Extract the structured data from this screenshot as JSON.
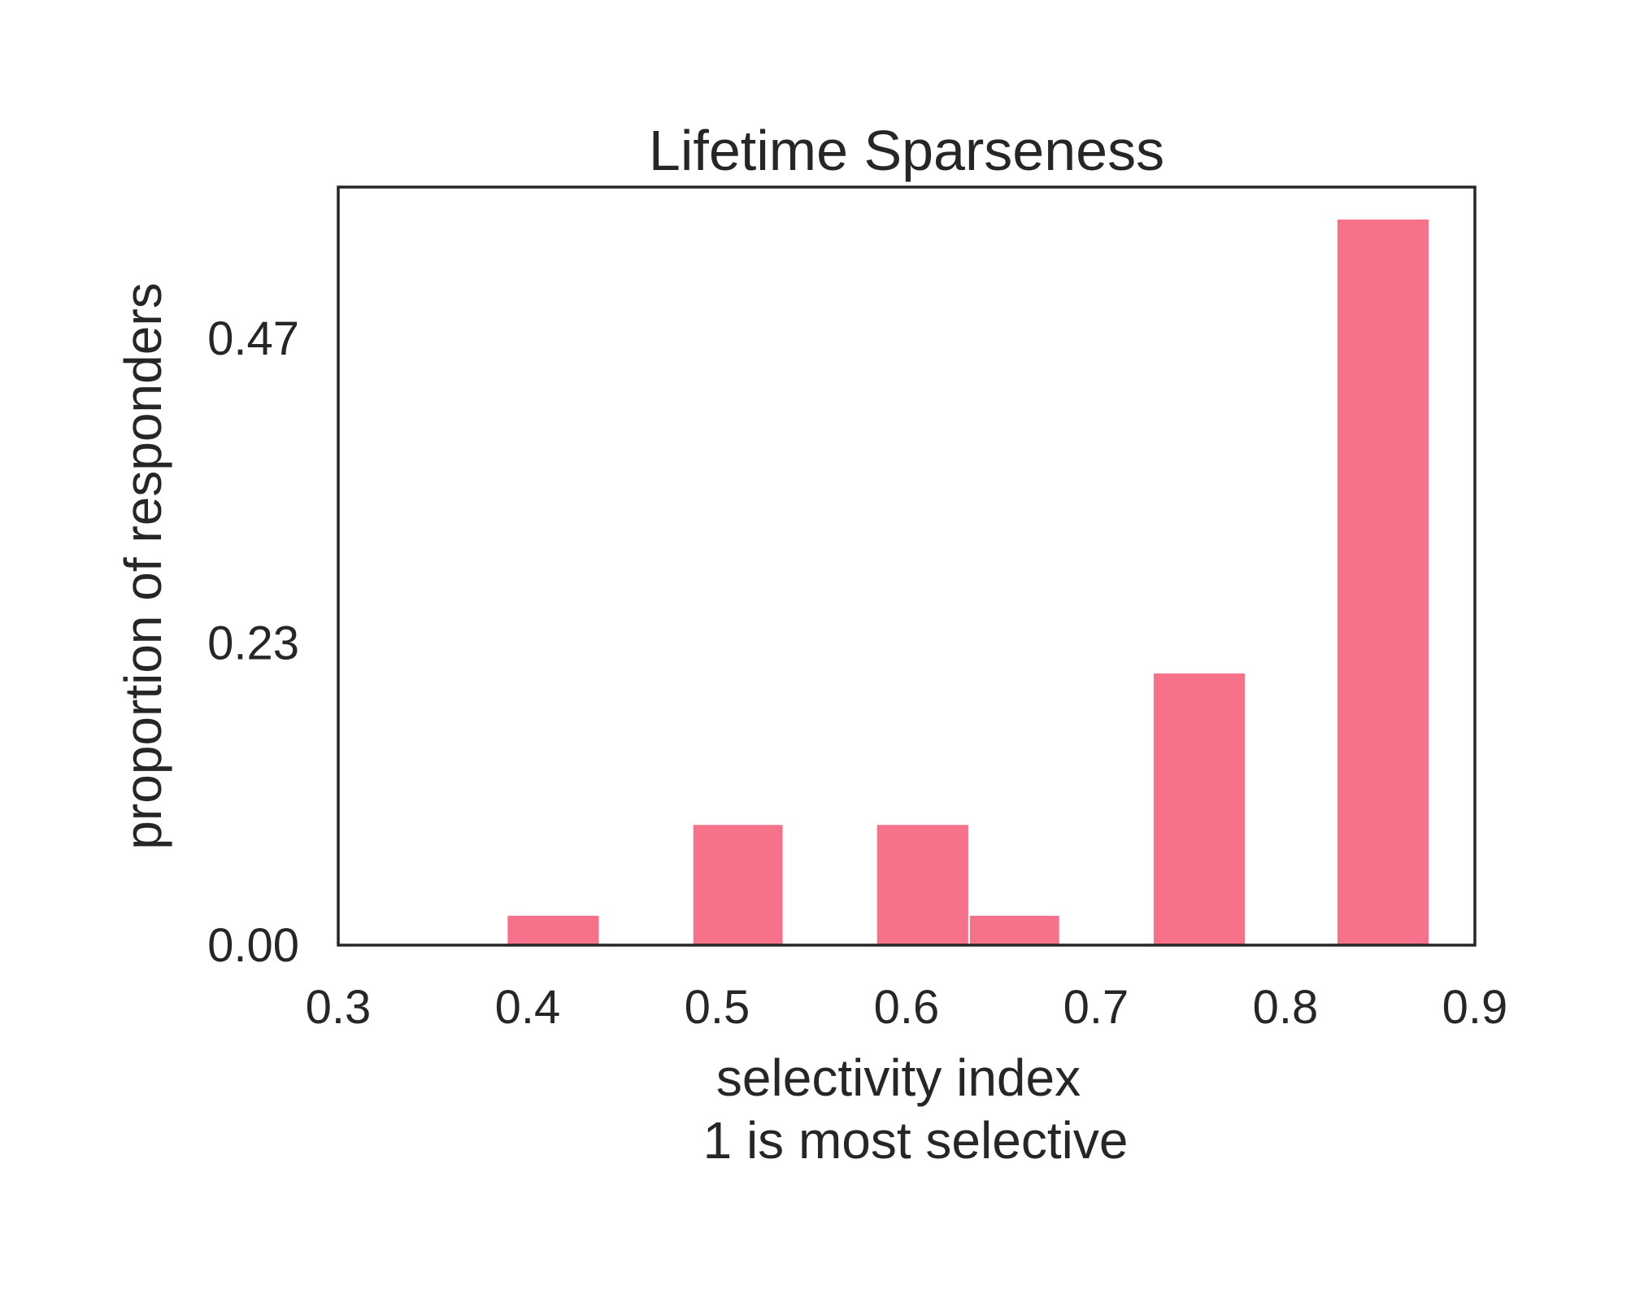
{
  "chart_data": {
    "type": "bar",
    "title": "Lifetime Sparseness",
    "xlabel": "selectivity index",
    "xlabel_line2": "1 is most selective",
    "ylabel": "proportion of responders",
    "xlim": [
      0.3,
      0.9
    ],
    "ylim": [
      0,
      0.587
    ],
    "xticks": [
      0.3,
      0.4,
      0.5,
      0.6,
      0.7,
      0.8,
      0.9
    ],
    "xtick_labels": [
      "0.3",
      "0.4",
      "0.5",
      "0.6",
      "0.7",
      "0.8",
      "0.9"
    ],
    "yticks": [
      0.0,
      0.234,
      0.47
    ],
    "ytick_labels": [
      "0.00",
      "0.23",
      "0.47"
    ],
    "grid": false,
    "bar_color": "#f6718a",
    "bins": [
      {
        "x0": 0.389,
        "x1": 0.438,
        "value": 0.0234
      },
      {
        "x0": 0.438,
        "x1": 0.487,
        "value": 0.0
      },
      {
        "x0": 0.487,
        "x1": 0.535,
        "value": 0.0937
      },
      {
        "x0": 0.535,
        "x1": 0.584,
        "value": 0.0
      },
      {
        "x0": 0.584,
        "x1": 0.633,
        "value": 0.0937
      },
      {
        "x0": 0.633,
        "x1": 0.681,
        "value": 0.0234
      },
      {
        "x0": 0.681,
        "x1": 0.73,
        "value": 0.0
      },
      {
        "x0": 0.73,
        "x1": 0.779,
        "value": 0.211
      },
      {
        "x0": 0.779,
        "x1": 0.827,
        "value": 0.0
      },
      {
        "x0": 0.827,
        "x1": 0.876,
        "value": 0.5625
      }
    ]
  }
}
